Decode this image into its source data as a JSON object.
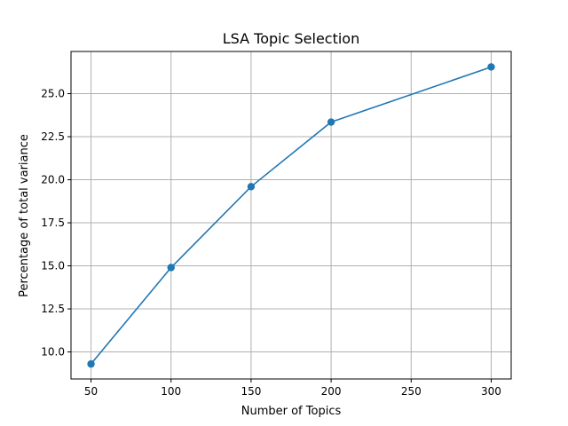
{
  "chart_data": {
    "type": "line",
    "title": "LSA Topic Selection",
    "xlabel": "Number of Topics",
    "ylabel": "Percentage of total variance",
    "x": [
      50,
      100,
      150,
      200,
      300
    ],
    "series": [
      {
        "values": [
          9.3,
          14.9,
          19.6,
          23.35,
          26.55
        ]
      }
    ],
    "xlim": [
      37.5,
      312.5
    ],
    "ylim": [
      8.43,
      27.45
    ],
    "xticks": [
      50,
      100,
      150,
      200,
      250,
      300
    ],
    "xtick_labels": [
      "50",
      "100",
      "150",
      "200",
      "250",
      "300"
    ],
    "yticks": [
      10.0,
      12.5,
      15.0,
      17.5,
      20.0,
      22.5,
      25.0
    ],
    "ytick_labels": [
      "10.0",
      "12.5",
      "15.0",
      "17.5",
      "20.0",
      "22.5",
      "25.0"
    ],
    "grid": true,
    "marker": "circle",
    "line_color": "#1f77b4"
  }
}
